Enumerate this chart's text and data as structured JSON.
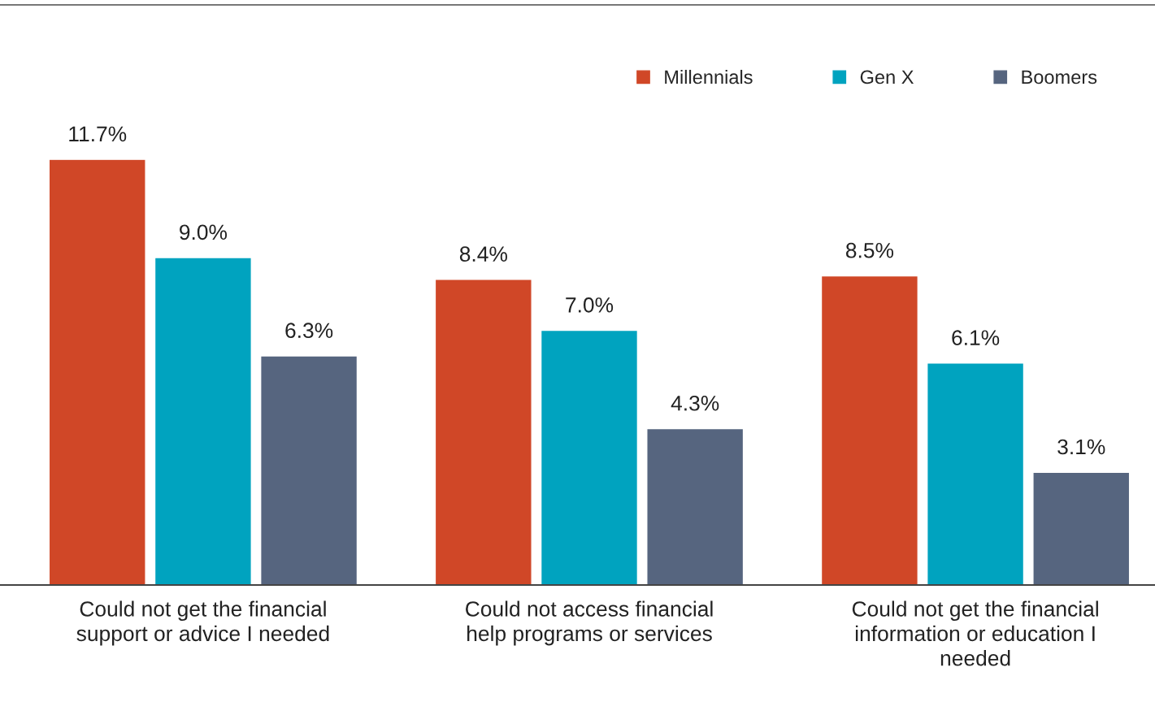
{
  "chart_data": {
    "type": "bar",
    "categories": [
      "Could not get the financial support or advice I needed",
      "Could not access financial help programs or services",
      "Could not get the financial information or education I needed"
    ],
    "series": [
      {
        "name": "Millennials",
        "color": "#d04727",
        "values": [
          11.7,
          8.4,
          8.5
        ],
        "value_labels": [
          "11.7%",
          "8.4%",
          "8.5%"
        ]
      },
      {
        "name": "Gen X",
        "color": "#00a3bf",
        "values": [
          9.0,
          7.0,
          6.1
        ],
        "value_labels": [
          "9.0%",
          "7.0%",
          "6.1%"
        ]
      },
      {
        "name": "Boomers",
        "color": "#56657f",
        "values": [
          6.3,
          4.3,
          3.1
        ],
        "value_labels": [
          "6.3%",
          "4.3%",
          "3.1%"
        ]
      }
    ],
    "legend": "top right",
    "grid": false,
    "tick_labels": "x"
  }
}
